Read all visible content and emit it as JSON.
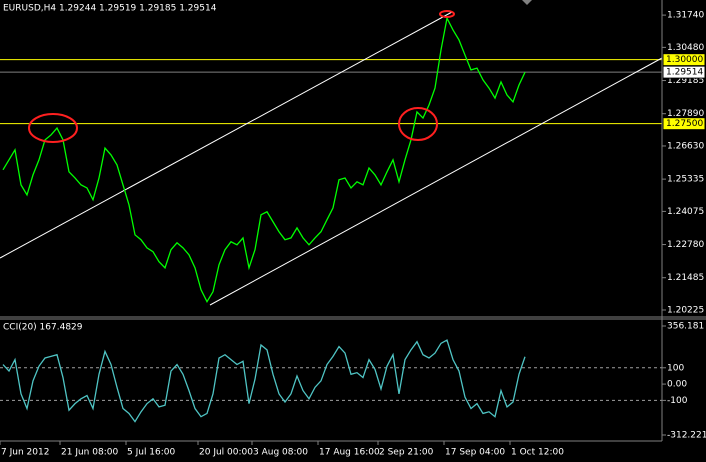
{
  "chart_data": [
    {
      "type": "line",
      "title": "EURUSD,H4  1.29244 1.29519 1.29185 1.29514",
      "color": "#00ff00",
      "values": [
        1.257,
        1.2609,
        1.2648,
        1.2511,
        1.2472,
        1.255,
        1.2609,
        1.2687,
        1.2706,
        1.2733,
        1.2687,
        1.2562,
        1.2538,
        1.2511,
        1.2499,
        1.2453,
        1.2538,
        1.2655,
        1.2628,
        1.2589,
        1.2511,
        1.2433,
        1.2316,
        1.2297,
        1.2265,
        1.225,
        1.2211,
        1.2187,
        1.2258,
        1.2285,
        1.2265,
        1.2238,
        1.2187,
        1.2102,
        1.2055,
        1.2094,
        1.2199,
        1.2258,
        1.2289,
        1.2277,
        1.2304,
        1.2187,
        1.2258,
        1.2394,
        1.2406,
        1.2367,
        1.2328,
        1.2297,
        1.2304,
        1.2343,
        1.2304,
        1.2277,
        1.2304,
        1.2328,
        1.2375,
        1.2421,
        1.2531,
        1.2538,
        1.2499,
        1.2523,
        1.2511,
        1.2577,
        1.255,
        1.2511,
        1.2562,
        1.2609,
        1.2523,
        1.2609,
        1.2687,
        1.2796,
        1.2772,
        1.2823,
        1.2889,
        1.3038,
        1.3162,
        1.3116,
        1.3077,
        1.3018,
        1.296,
        1.2967,
        1.2921,
        1.2889,
        1.285,
        1.2913,
        1.2862,
        1.2835,
        1.2901,
        1.2951
      ],
      "ylim": [
        1.1999,
        1.3233
      ],
      "yticks": [
        {
          "value": 1.3174,
          "label": "1.31740"
        },
        {
          "value": 1.3048,
          "label": "1.30480"
        },
        {
          "value": 1.29185,
          "label": "1.29185"
        },
        {
          "value": 1.2789,
          "label": "1.27890"
        },
        {
          "value": 1.2663,
          "label": "1.26630"
        },
        {
          "value": 1.25335,
          "label": "1.25335"
        },
        {
          "value": 1.24075,
          "label": "1.24075"
        },
        {
          "value": 1.2278,
          "label": "1.22780"
        },
        {
          "value": 1.21485,
          "label": "1.21485"
        },
        {
          "value": 1.20225,
          "label": "1.20225"
        }
      ],
      "levels": [
        {
          "value": 1.3,
          "label": "1.30000",
          "color": "#ffff00"
        },
        {
          "value": 1.275,
          "label": "1.27500",
          "color": "#ffff00"
        },
        {
          "value": 1.29514,
          "label": "1.29514",
          "color": "#808080"
        }
      ]
    },
    {
      "type": "line",
      "title": "CCI(20) 167.4829",
      "color": "#4fc4c4",
      "categories": [
        "7 Jun 2012",
        null,
        null,
        null,
        null,
        null,
        null,
        null,
        null,
        null,
        "21 Jun 08:00",
        null,
        null,
        null,
        null,
        null,
        null,
        null,
        null,
        null,
        null,
        "5 Jul 16:00",
        null,
        null,
        null,
        null,
        null,
        null,
        null,
        null,
        null,
        null,
        null,
        "20 Jul 00:00",
        null,
        null,
        null,
        null,
        null,
        null,
        null,
        null,
        "3 Aug 08:00",
        null,
        null,
        null,
        null,
        null,
        null,
        null,
        null,
        null,
        null,
        "17 Aug 16:00",
        null,
        null,
        null,
        null,
        null,
        null,
        null,
        null,
        null,
        "2 Sep 21:00",
        null,
        null,
        null,
        null,
        null,
        null,
        null,
        null,
        null,
        null,
        "17 Sep 04:00",
        null,
        null,
        null,
        null,
        null,
        null,
        null,
        null,
        null,
        null,
        "1 Oct 12:00",
        null,
        null
      ],
      "values": [
        120,
        80,
        150,
        -60,
        -150,
        20,
        110,
        160,
        170,
        180,
        40,
        -160,
        -120,
        -90,
        -70,
        -150,
        60,
        200,
        120,
        -20,
        -150,
        -180,
        -230,
        -170,
        -120,
        -90,
        -140,
        -130,
        80,
        120,
        60,
        -40,
        -150,
        -200,
        -180,
        -60,
        160,
        180,
        150,
        120,
        140,
        -120,
        30,
        240,
        210,
        60,
        -60,
        -110,
        -60,
        50,
        -40,
        -90,
        -20,
        20,
        120,
        170,
        230,
        190,
        60,
        70,
        40,
        150,
        90,
        -30,
        110,
        180,
        -60,
        150,
        210,
        260,
        180,
        160,
        190,
        250,
        270,
        150,
        80,
        -80,
        -150,
        -120,
        -180,
        -170,
        -200,
        -40,
        -140,
        -110,
        60,
        167.4829
      ],
      "ylim": [
        -312.221,
        356.181
      ],
      "yticks": [
        356.181,
        100,
        {
          "value": 0,
          "label": "0.00"
        },
        -100,
        -312.221
      ],
      "levels": [
        100,
        -100
      ]
    }
  ]
}
